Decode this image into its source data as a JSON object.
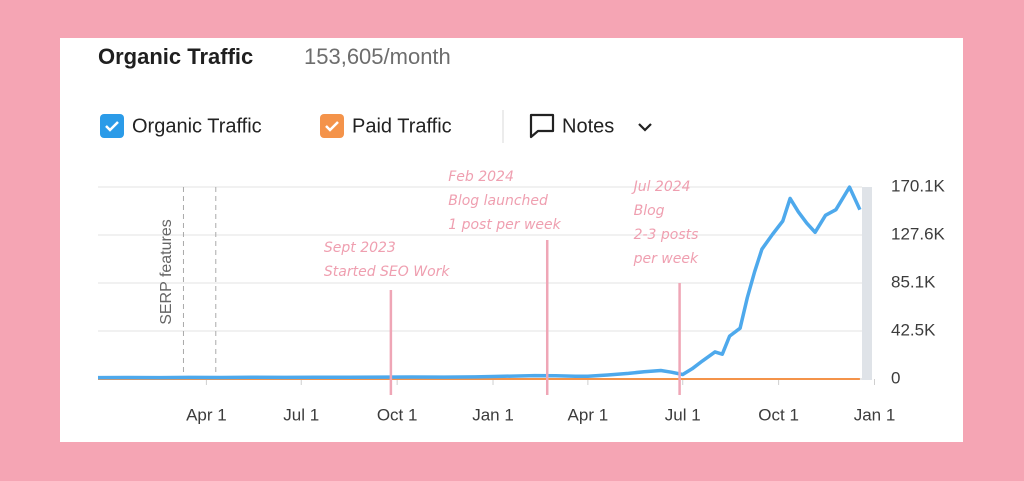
{
  "chart_data": {
    "type": "line",
    "title": "Organic Traffic",
    "subtitle": "153,605/month",
    "legend_extra": "Notes",
    "series": [
      {
        "name": "Organic Traffic",
        "color": "#4ea9ec",
        "values": [
          1200,
          1300,
          1200,
          1400,
          1300,
          1500,
          1400,
          1600,
          1500,
          1700,
          1800,
          1700,
          1900,
          2200,
          2600,
          3000,
          2800,
          2500,
          2400,
          3500,
          5000,
          6500,
          7500,
          6000,
          4000,
          9000,
          16000,
          24000,
          22000,
          38000,
          45000,
          72000,
          95000,
          115000,
          128000,
          140000,
          160000,
          148000,
          138000,
          130000,
          145000,
          150000,
          170000,
          150000
        ]
      },
      {
        "name": "Paid Traffic",
        "color": "#f4934a",
        "values": [
          0,
          0,
          0,
          0,
          0,
          0,
          0,
          0,
          0,
          0,
          0,
          0,
          0,
          0,
          0,
          0,
          0,
          0,
          0,
          0,
          0,
          0,
          0,
          0,
          0,
          0,
          0,
          0,
          0,
          0,
          0,
          0,
          0,
          0,
          0,
          0,
          0,
          0,
          0,
          0,
          0,
          0,
          0,
          0
        ]
      }
    ],
    "x": [
      "2022-12-18",
      "2023-01-15",
      "2023-02-15",
      "2023-03-15",
      "2023-04-15",
      "2023-05-15",
      "2023-06-15",
      "2023-07-15",
      "2023-08-15",
      "2023-09-15",
      "2023-10-15",
      "2023-11-15",
      "2023-12-15",
      "2024-01-01",
      "2024-01-20",
      "2024-02-10",
      "2024-03-01",
      "2024-03-20",
      "2024-04-01",
      "2024-04-20",
      "2024-05-10",
      "2024-05-25",
      "2024-06-10",
      "2024-06-20",
      "2024-07-01",
      "2024-07-10",
      "2024-07-20",
      "2024-08-01",
      "2024-08-08",
      "2024-08-15",
      "2024-08-25",
      "2024-09-01",
      "2024-09-08",
      "2024-09-15",
      "2024-09-25",
      "2024-10-05",
      "2024-10-12",
      "2024-10-20",
      "2024-10-28",
      "2024-11-05",
      "2024-11-15",
      "2024-11-25",
      "2024-12-08",
      "2024-12-18"
    ],
    "xlim": [
      "2022-12-18",
      "2024-12-20"
    ],
    "xticks": [
      {
        "value": "2023-04-01",
        "label": "Apr 1"
      },
      {
        "value": "2023-07-01",
        "label": "Jul 1"
      },
      {
        "value": "2023-10-01",
        "label": "Oct 1"
      },
      {
        "value": "2024-01-01",
        "label": "Jan 1"
      },
      {
        "value": "2024-04-01",
        "label": "Apr 1"
      },
      {
        "value": "2024-07-01",
        "label": "Jul 1"
      },
      {
        "value": "2024-10-01",
        "label": "Oct 1"
      },
      {
        "value": "2025-01-01",
        "label": "Jan 1"
      }
    ],
    "ylim": [
      0,
      170100
    ],
    "yticks": [
      0,
      {
        "value": 42500,
        "label": "42.5K"
      },
      {
        "value": 85100,
        "label": "85.1K"
      },
      {
        "value": 127600,
        "label": "127.6K"
      },
      {
        "value": 170100,
        "label": "170.1K"
      }
    ],
    "grid": true,
    "markers": {
      "label": "SERP features",
      "dates": [
        "2023-03-10",
        "2023-04-10"
      ]
    },
    "annotations": [
      {
        "date": "2023-09-25",
        "lines": [
          "Sept 2023",
          "Started SEO Work"
        ]
      },
      {
        "date": "2024-02-22",
        "lines": [
          "Feb 2024",
          "Blog launched",
          "1 post per week"
        ]
      },
      {
        "date": "2024-06-28",
        "lines": [
          "Jul 2024",
          "Blog",
          "2-3 posts",
          "per week"
        ]
      }
    ]
  }
}
